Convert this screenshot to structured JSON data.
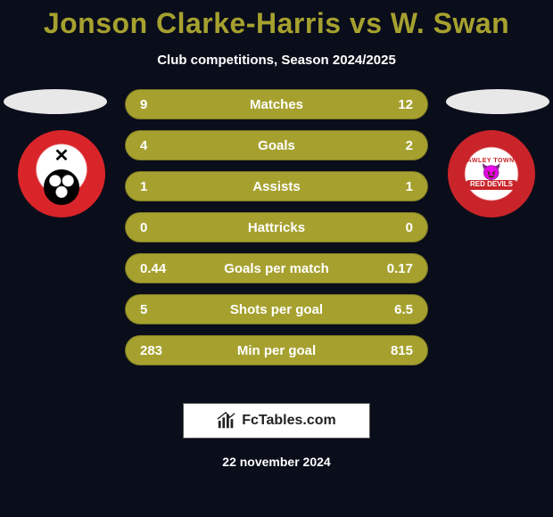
{
  "title_color": "#a6a12f",
  "title": "Jonson Clarke-Harris vs W. Swan",
  "subtitle": "Club competitions, Season 2024/2025",
  "bar_color": "#a6a12f",
  "bar_text_color": "#ffffff",
  "ellipse_color": "#e8e8e8",
  "background_color": "#0a0d1a",
  "crest_left_label": "ROTHERHAM",
  "crest_right_top": "CRAWLEY TOWN FC",
  "crest_right_bottom": "RED DEVILS",
  "rows": [
    {
      "left": "9",
      "label": "Matches",
      "right": "12"
    },
    {
      "left": "4",
      "label": "Goals",
      "right": "2"
    },
    {
      "left": "1",
      "label": "Assists",
      "right": "1"
    },
    {
      "left": "0",
      "label": "Hattricks",
      "right": "0"
    },
    {
      "left": "0.44",
      "label": "Goals per match",
      "right": "0.17"
    },
    {
      "left": "5",
      "label": "Shots per goal",
      "right": "6.5"
    },
    {
      "left": "283",
      "label": "Min per goal",
      "right": "815"
    }
  ],
  "footer_brand": "FcTables.com",
  "footer_date": "22 november 2024"
}
